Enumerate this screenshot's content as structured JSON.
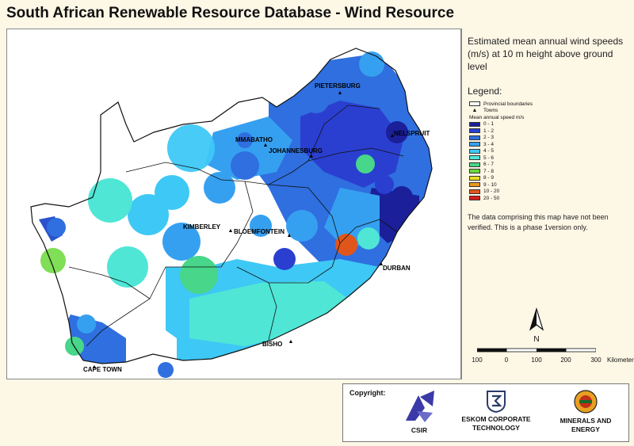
{
  "title": "South African Renewable Resource Database - Wind Resource",
  "description": "Estimated mean annual wind speeds (m/s) at 10 m height above ground level",
  "legend": {
    "heading": "Legend:",
    "provincial_boundaries": "Provincial boundaries",
    "towns": "Towns",
    "speed_heading": "Mean annual speed m/s",
    "classes": [
      {
        "label": "0 - 1",
        "color": "#1b1f9a"
      },
      {
        "label": "1 - 2",
        "color": "#2a3fd0"
      },
      {
        "label": "2 - 3",
        "color": "#2f6fe0"
      },
      {
        "label": "3 - 4",
        "color": "#36a0f0"
      },
      {
        "label": "4 - 5",
        "color": "#3ec8f5"
      },
      {
        "label": "5 - 6",
        "color": "#4fe6d6"
      },
      {
        "label": "6 - 7",
        "color": "#47d68a"
      },
      {
        "label": "7 - 8",
        "color": "#6bd83a"
      },
      {
        "label": "8 - 9",
        "color": "#e8e020"
      },
      {
        "label": "9 - 10",
        "color": "#e89a18"
      },
      {
        "label": "10 - 20",
        "color": "#e0561a"
      },
      {
        "label": "20 - 50",
        "color": "#d81e1e"
      }
    ]
  },
  "note": "The data comprising this map have not been verified.  This is a phase 1version only.",
  "north_label": "N",
  "scale": {
    "ticks": [
      "100",
      "0",
      "100",
      "200",
      "300"
    ],
    "unit": "Kilometers"
  },
  "towns": [
    {
      "name": "PIETERSBURG"
    },
    {
      "name": "NELSPRUIT"
    },
    {
      "name": "MMABATHO"
    },
    {
      "name": "JOHANNESBURG"
    },
    {
      "name": "KIMBERLEY"
    },
    {
      "name": "BLOEMFONTEIN"
    },
    {
      "name": "DURBAN"
    },
    {
      "name": "BISHO"
    },
    {
      "name": "CAPE TOWN"
    }
  ],
  "credits": {
    "copyright": "Copyright:",
    "csir": "CSIR",
    "eskom_line1": "ESKOM CORPORATE",
    "eskom_line2": "TECHNOLOGY",
    "minerals_line1": "MINERALS AND",
    "minerals_line2": "ENERGY"
  }
}
